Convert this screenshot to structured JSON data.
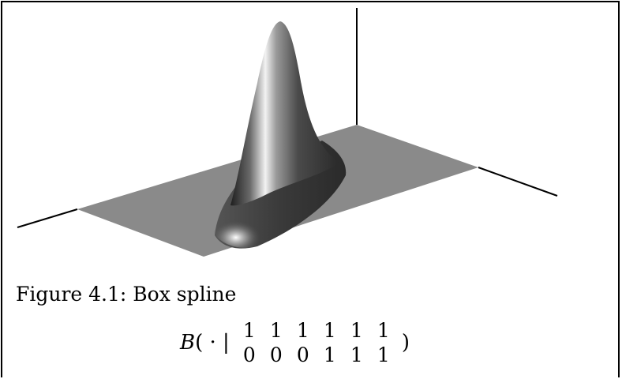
{
  "figure": {
    "caption": "Figure 4.1: Box spline",
    "formula": {
      "function": "B",
      "open": "( · |",
      "close": ")",
      "matrix": [
        [
          "1",
          "1",
          "1",
          "1",
          "1",
          "1"
        ],
        [
          "0",
          "0",
          "0",
          "1",
          "1",
          "1"
        ]
      ]
    }
  },
  "colors": {
    "plane": "#8a8a8a",
    "surface_dark": "#2e2e2e",
    "surface_light": "#ffffff",
    "axis": "#000000"
  }
}
